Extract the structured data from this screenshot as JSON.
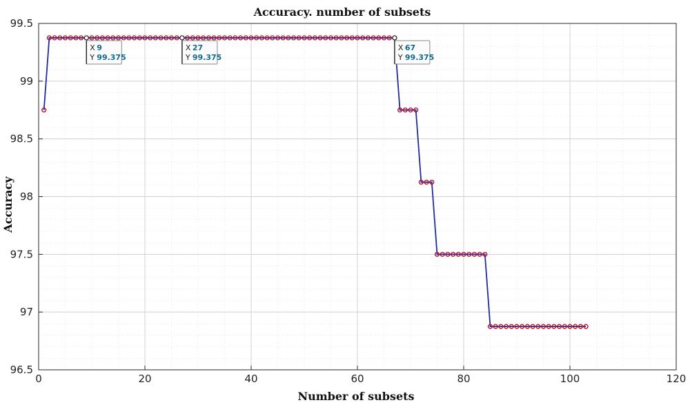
{
  "chart_data": {
    "type": "line",
    "title": "Accuracy. number of subsets",
    "xlabel": "Number of subsets",
    "ylabel": "Accuracy",
    "xlim": [
      0,
      120
    ],
    "ylim": [
      96.5,
      99.5
    ],
    "xticks": [
      0,
      20,
      40,
      60,
      80,
      100,
      120
    ],
    "yticks": [
      96.5,
      97,
      97.5,
      98,
      98.5,
      99,
      99.5
    ],
    "xtick_labels": [
      "0",
      "20",
      "40",
      "60",
      "80",
      "100",
      "120"
    ],
    "ytick_labels": [
      "96.5",
      "97",
      "97.5",
      "98",
      "98.5",
      "99",
      "99.5"
    ],
    "grid": true,
    "line_color": "#1f2a9c",
    "marker_color": "#b5122b",
    "segments": [
      {
        "x_start": 1,
        "x_end": 1,
        "y": 98.75
      },
      {
        "x_start": 2,
        "x_end": 67,
        "y": 99.375
      },
      {
        "x_start": 68,
        "x_end": 71,
        "y": 98.75
      },
      {
        "x_start": 72,
        "x_end": 74,
        "y": 98.125
      },
      {
        "x_start": 75,
        "x_end": 84,
        "y": 97.5
      },
      {
        "x_start": 85,
        "x_end": 103,
        "y": 96.875
      }
    ],
    "datatips": [
      {
        "x_label": "X",
        "x_value": "9",
        "y_label": "Y",
        "y_value": "99.375",
        "x": 9,
        "y": 99.375
      },
      {
        "x_label": "X",
        "x_value": "27",
        "y_label": "Y",
        "y_value": "99.375",
        "x": 27,
        "y": 99.375
      },
      {
        "x_label": "X",
        "x_value": "67",
        "y_label": "Y",
        "y_value": "99.375",
        "x": 67,
        "y": 99.375
      }
    ]
  }
}
